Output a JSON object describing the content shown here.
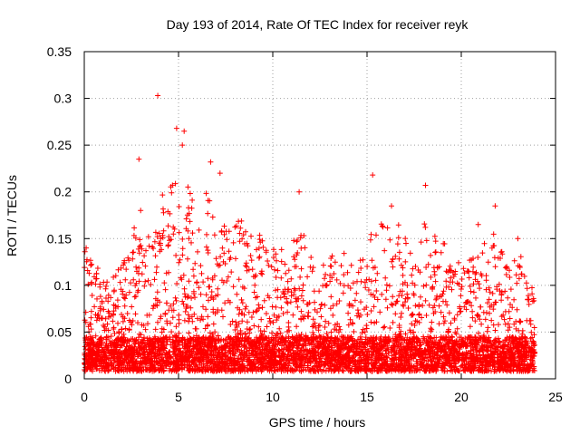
{
  "chart_data": {
    "type": "scatter",
    "title": "Day 193 of 2014, Rate Of TEC Index for receiver reyk",
    "xlabel": "GPS time / hours",
    "ylabel": "ROTI / TECUs",
    "xlim": [
      0,
      25
    ],
    "ylim": [
      0,
      0.35
    ],
    "xticks": [
      0,
      5,
      10,
      15,
      20,
      25
    ],
    "yticks": [
      0,
      0.05,
      0.1,
      0.15,
      0.2,
      0.25,
      0.3,
      0.35
    ],
    "xtick_labels": [
      "0",
      "5",
      "10",
      "15",
      "20",
      "25"
    ],
    "ytick_labels": [
      "0",
      "0.05",
      "0.1",
      "0.15",
      "0.2",
      "0.25",
      "0.3",
      "0.35"
    ],
    "grid": true,
    "marker": "+",
    "color": "#ff0000",
    "data_range_hours": [
      0,
      23.9
    ],
    "notable_points": [
      {
        "x": 3.9,
        "y": 0.303
      },
      {
        "x": 4.9,
        "y": 0.268
      },
      {
        "x": 5.3,
        "y": 0.265
      },
      {
        "x": 5.2,
        "y": 0.25
      },
      {
        "x": 2.9,
        "y": 0.235
      },
      {
        "x": 6.7,
        "y": 0.232
      },
      {
        "x": 7.2,
        "y": 0.22
      },
      {
        "x": 11.4,
        "y": 0.2
      },
      {
        "x": 15.3,
        "y": 0.218
      },
      {
        "x": 18.1,
        "y": 0.207
      },
      {
        "x": 21.8,
        "y": 0.185
      },
      {
        "x": 16.3,
        "y": 0.185
      },
      {
        "x": 20.9,
        "y": 0.165
      },
      {
        "x": 23.0,
        "y": 0.15
      },
      {
        "x": 0.1,
        "y": 0.14
      }
    ],
    "envelope": [
      {
        "x": 0,
        "y": 0.14
      },
      {
        "x": 1,
        "y": 0.11
      },
      {
        "x": 2,
        "y": 0.12
      },
      {
        "x": 2.9,
        "y": 0.19
      },
      {
        "x": 3.5,
        "y": 0.17
      },
      {
        "x": 4.4,
        "y": 0.21
      },
      {
        "x": 5,
        "y": 0.23
      },
      {
        "x": 5.5,
        "y": 0.21
      },
      {
        "x": 6.5,
        "y": 0.2
      },
      {
        "x": 7.5,
        "y": 0.17
      },
      {
        "x": 8.5,
        "y": 0.17
      },
      {
        "x": 9.5,
        "y": 0.15
      },
      {
        "x": 10.5,
        "y": 0.14
      },
      {
        "x": 11.4,
        "y": 0.16
      },
      {
        "x": 12.5,
        "y": 0.13
      },
      {
        "x": 13.5,
        "y": 0.14
      },
      {
        "x": 14.5,
        "y": 0.12
      },
      {
        "x": 15.3,
        "y": 0.17
      },
      {
        "x": 16.3,
        "y": 0.18
      },
      {
        "x": 17.3,
        "y": 0.14
      },
      {
        "x": 18.1,
        "y": 0.17
      },
      {
        "x": 19,
        "y": 0.15
      },
      {
        "x": 20,
        "y": 0.12
      },
      {
        "x": 20.9,
        "y": 0.14
      },
      {
        "x": 21.8,
        "y": 0.16
      },
      {
        "x": 22.5,
        "y": 0.12
      },
      {
        "x": 23,
        "y": 0.14
      },
      {
        "x": 23.9,
        "y": 0.09
      }
    ],
    "baseline": [
      0.008,
      0.045
    ]
  }
}
